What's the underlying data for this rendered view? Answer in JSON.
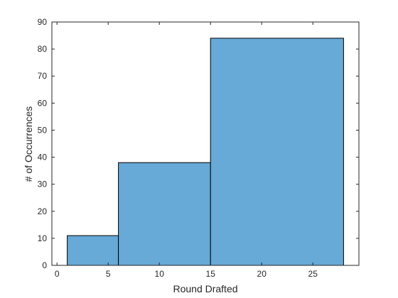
{
  "chart_data": {
    "type": "bar",
    "title": "",
    "xlabel": "Round Drafted",
    "ylabel": "# of Occurrences",
    "bins": [
      {
        "x_start": 1,
        "x_end": 6,
        "value": 11
      },
      {
        "x_start": 6,
        "x_end": 15,
        "value": 38
      },
      {
        "x_start": 15,
        "x_end": 28,
        "value": 84
      }
    ],
    "xlim": [
      -0.5,
      29.5
    ],
    "ylim": [
      0,
      90
    ],
    "xticks": [
      0,
      5,
      10,
      15,
      20,
      25
    ],
    "yticks": [
      0,
      10,
      20,
      30,
      40,
      50,
      60,
      70,
      80,
      90
    ],
    "grid": false,
    "bar_color": "#67a9d7",
    "edge_color": "#000000"
  }
}
